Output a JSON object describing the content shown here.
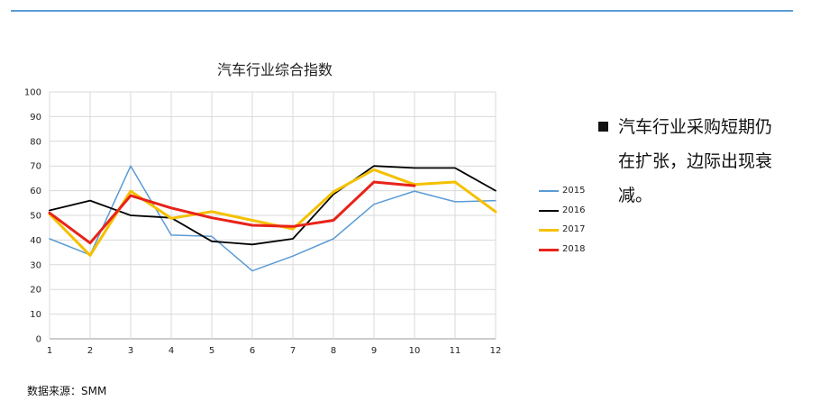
{
  "slide": {
    "bullet": "汽车行业采购短期仍在扩张，边际出现衰减。",
    "source": "数据来源：SMM"
  },
  "colors": {
    "rule": "#5b9bd5",
    "grid": "#d9d9d9"
  },
  "chart_data": {
    "type": "line",
    "title": "汽车行业综合指数",
    "xlabel": "",
    "ylabel": "",
    "x": [
      1,
      2,
      3,
      4,
      5,
      6,
      7,
      8,
      9,
      10,
      11,
      12
    ],
    "ylim": [
      0,
      100
    ],
    "yticks": [
      0,
      10,
      20,
      30,
      40,
      50,
      60,
      70,
      80,
      90,
      100
    ],
    "grid": true,
    "legend_position": "right",
    "series": [
      {
        "name": "2015",
        "color": "#5b9bd5",
        "width": 1.5,
        "values": [
          40.5,
          34,
          70,
          42,
          41.5,
          27.5,
          33.5,
          40.5,
          54.5,
          59.8,
          55.5,
          56
        ]
      },
      {
        "name": "2016",
        "color": "#000000",
        "width": 1.8,
        "values": [
          52,
          56,
          50,
          49,
          39.5,
          38.2,
          40.5,
          58.5,
          70,
          69.2,
          69.2,
          60
        ]
      },
      {
        "name": "2017",
        "color": "#f5c000",
        "width": 3,
        "values": [
          50.5,
          33.8,
          59.8,
          48.8,
          51.5,
          48,
          44.5,
          59.5,
          68.5,
          62.5,
          63.5,
          51.5
        ]
      },
      {
        "name": "2018",
        "color": "#e8231a",
        "width": 3,
        "values": [
          51,
          38.8,
          58,
          53,
          49,
          46,
          45.5,
          48,
          63.5,
          62,
          null,
          null
        ]
      }
    ]
  }
}
